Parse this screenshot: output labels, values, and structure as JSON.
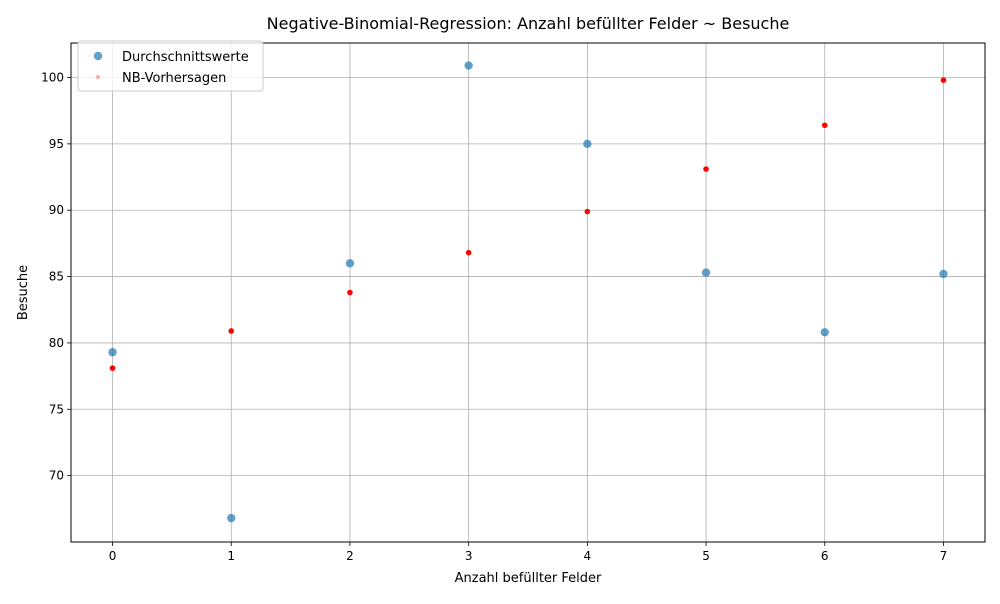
{
  "chart_data": {
    "type": "scatter",
    "title": "Negative-Binomial-Regression: Anzahl befüllter Felder ~ Besuche",
    "xlabel": "Anzahl befüllter Felder",
    "ylabel": "Besuche",
    "xlim": [
      -0.35,
      7.35
    ],
    "ylim": [
      65.0,
      102.6
    ],
    "xticks": [
      0,
      1,
      2,
      3,
      4,
      5,
      6,
      7
    ],
    "yticks": [
      70,
      75,
      80,
      85,
      90,
      95,
      100
    ],
    "grid": true,
    "legend_position": "top-left",
    "series": [
      {
        "name": "Durchschnittswerte",
        "color": "#1f77b4",
        "marker": "circle",
        "x": [
          0,
          1,
          2,
          3,
          4,
          5,
          6,
          7
        ],
        "y": [
          79.3,
          66.8,
          86.0,
          100.9,
          95.0,
          85.3,
          80.8,
          85.2
        ]
      },
      {
        "name": "NB-Vorhersagen",
        "color": "#ff0000",
        "marker": "small-dot",
        "x": [
          0,
          1,
          2,
          3,
          4,
          5,
          6,
          7
        ],
        "y": [
          78.1,
          80.9,
          83.8,
          86.8,
          89.9,
          93.1,
          96.4,
          99.8
        ]
      }
    ]
  }
}
